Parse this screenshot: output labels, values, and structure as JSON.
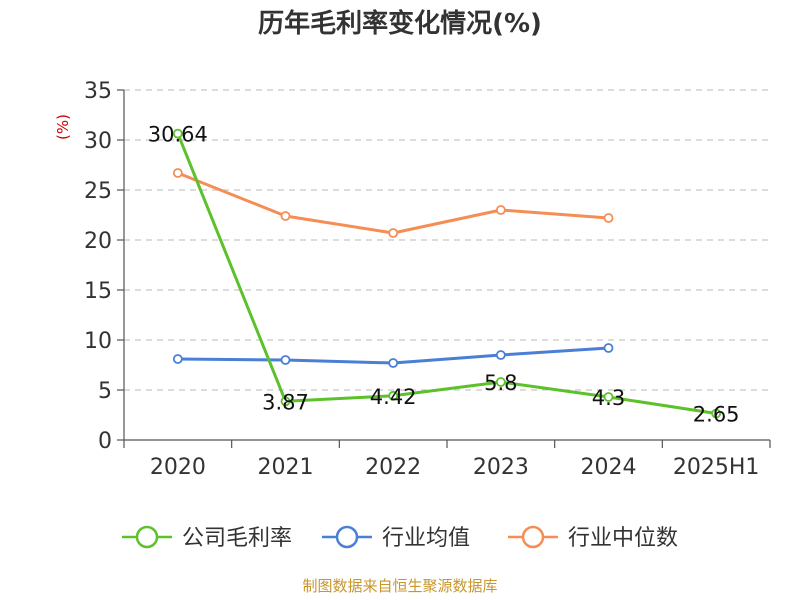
{
  "chart_data": {
    "type": "line",
    "title": "历年毛利率变化情况(%)",
    "unit_label": "(%)",
    "categories": [
      "2020",
      "2021",
      "2022",
      "2023",
      "2024",
      "2025H1"
    ],
    "y_ticks": [
      "0",
      "5",
      "10",
      "15",
      "20",
      "25",
      "30",
      "35"
    ],
    "ylim": [
      0,
      35
    ],
    "grid": true,
    "legend_position": "bottom",
    "series": [
      {
        "name": "公司毛利率",
        "color": "#5cc12a",
        "values": [
          30.64,
          3.87,
          4.42,
          5.8,
          4.3,
          2.65
        ],
        "labels": [
          "30.64",
          "3.87",
          "4.42",
          "5.8",
          "4.3",
          "2.65"
        ]
      },
      {
        "name": "行业均值",
        "color": "#4a7fd6",
        "values": [
          8.1,
          8.0,
          7.7,
          8.5,
          9.2,
          null
        ]
      },
      {
        "name": "行业中位数",
        "color": "#f58d55",
        "values": [
          26.7,
          22.4,
          20.7,
          23.0,
          22.2,
          null
        ]
      }
    ]
  },
  "source": "制图数据来自恒生聚源数据库"
}
